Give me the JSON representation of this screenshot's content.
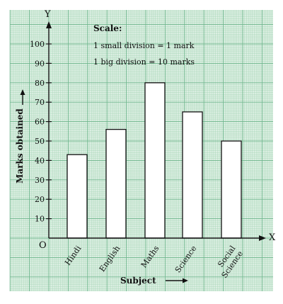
{
  "chart_data": {
    "type": "bar",
    "categories": [
      "Hindi",
      "English",
      "Maths",
      "Science",
      "Social Science"
    ],
    "category_lines": [
      [
        "Hindi"
      ],
      [
        "English"
      ],
      [
        "Maths"
      ],
      [
        "Science"
      ],
      [
        "Social",
        "Science"
      ]
    ],
    "values": [
      43,
      56,
      80,
      65,
      50
    ],
    "xlabel": "Subject",
    "ylabel": "Marks obtained",
    "ylim": [
      0,
      100
    ],
    "yticks": [
      10,
      20,
      30,
      40,
      50,
      60,
      70,
      80,
      90,
      100
    ],
    "origin_label": "O",
    "x_axis_letter": "X",
    "y_axis_letter": "Y",
    "scale": {
      "title": "Scale:",
      "lines": [
        "1 small division = 1 mark",
        "1 big division = 10 marks"
      ]
    },
    "grid": true,
    "colors": {
      "grid_paper": "#dcefe3",
      "grid_minor": "#a9d7b8",
      "grid_major": "#6cb58a",
      "bar_fill": "#ffffff",
      "bar_stroke": "#111111",
      "axis": "#111111"
    }
  }
}
